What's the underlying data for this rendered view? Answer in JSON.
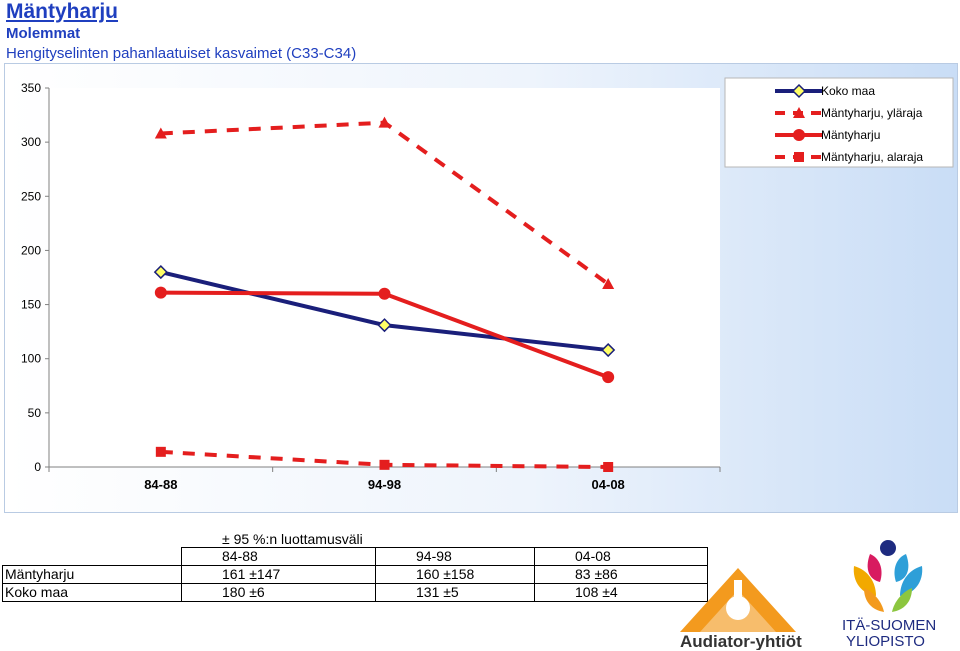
{
  "header": {
    "title": "Mäntyharju",
    "subtitle": "Molemmat",
    "description": "Hengityselinten pahanlaatuiset kasvaimet (C33-C34)"
  },
  "chart_data": {
    "type": "line",
    "categories": [
      "84-88",
      "94-98",
      "04-08"
    ],
    "ylim": [
      0,
      350
    ],
    "yticks": [
      0,
      50,
      100,
      150,
      200,
      250,
      300,
      350
    ],
    "grid": false,
    "legend_position": "top-right",
    "series": [
      {
        "name": "Koko maa",
        "values": [
          180,
          131,
          108
        ],
        "color": "#1a1f7a",
        "marker": "diamond",
        "dashed": false
      },
      {
        "name": "Mäntyharju, yläraja",
        "values": [
          308,
          318,
          169
        ],
        "color": "#e41e1e",
        "marker": "triangle",
        "dashed": true
      },
      {
        "name": "Mäntyharju",
        "values": [
          161,
          160,
          83
        ],
        "color": "#e41e1e",
        "marker": "circle",
        "dashed": false
      },
      {
        "name": "Mäntyharju, alaraja",
        "values": [
          14,
          2,
          0
        ],
        "color": "#e41e1e",
        "marker": "square",
        "dashed": true
      }
    ]
  },
  "table": {
    "caption": "± 95 %:n luottamusväli",
    "headers": [
      "84-88",
      "94-98",
      "04-08"
    ],
    "rows": [
      {
        "label": "Mäntyharju",
        "cells": [
          "161 ±147",
          "160 ±158",
          "83 ±86"
        ]
      },
      {
        "label": "Koko maa",
        "cells": [
          "180 ±6",
          "131 ±5",
          "108 ±4"
        ]
      }
    ]
  },
  "logos": {
    "audiator": "Audiator-yhtiöt",
    "uef_line1": "ITÄ-SUOMEN",
    "uef_line2": "YLIOPISTO"
  }
}
